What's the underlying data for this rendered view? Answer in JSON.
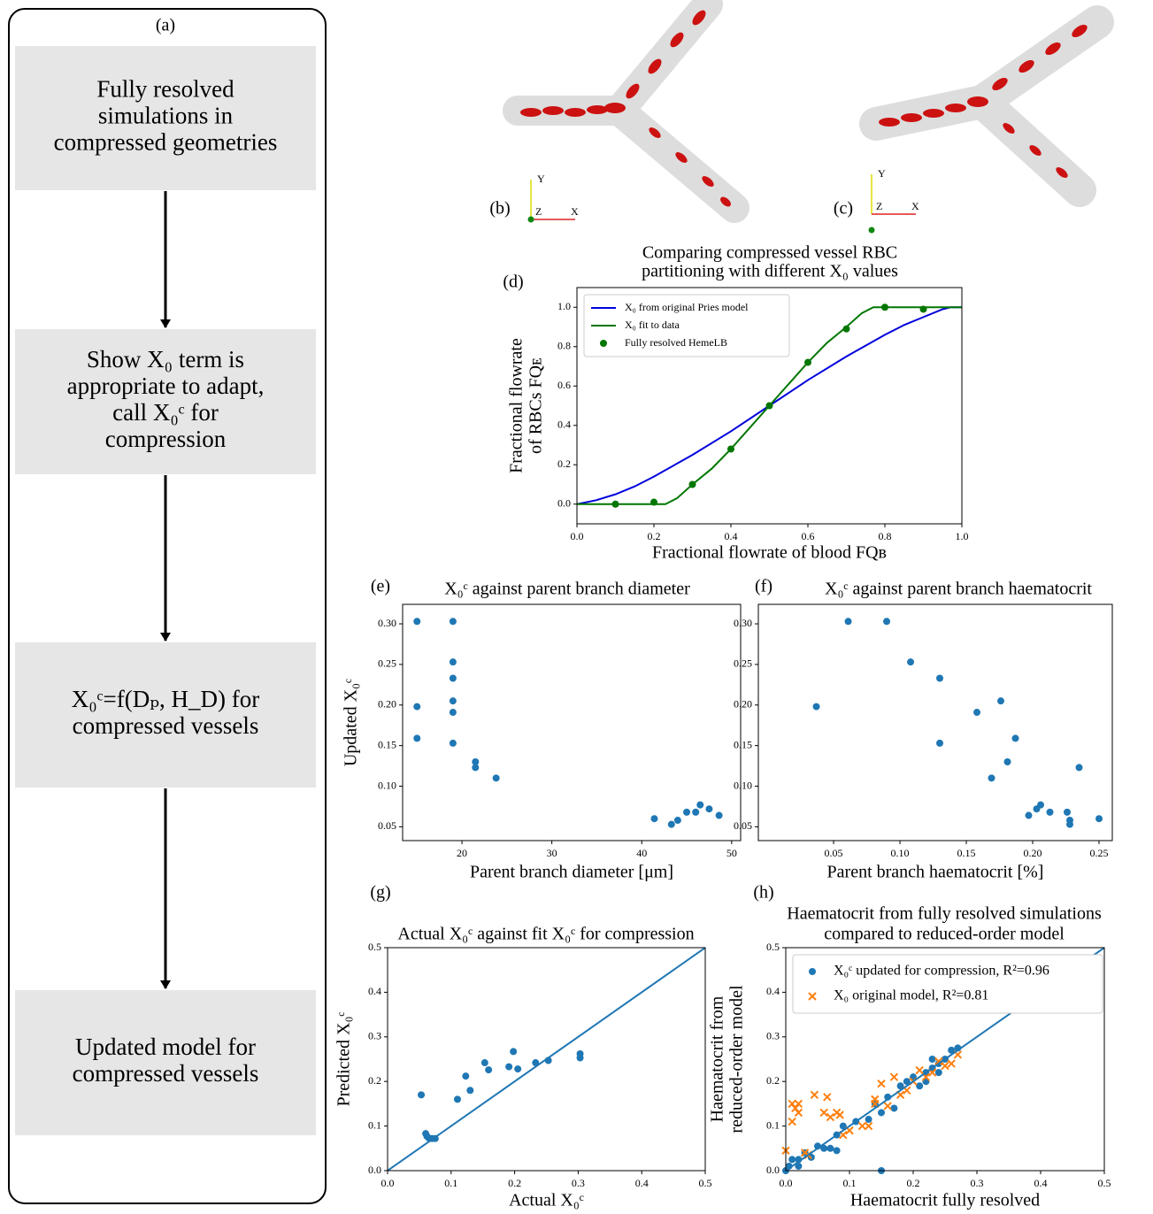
{
  "flowchart": {
    "label": "(a)",
    "steps": [
      [
        "Fully resolved",
        "simulations in",
        "compressed geometries"
      ],
      [
        "Show X₀ term is",
        "appropriate to adapt,",
        "call X₀ᶜ for",
        "compression"
      ],
      [
        "X₀ᶜ=f(Dₚ, H_D) for",
        "compressed vessels"
      ],
      [
        "Updated model for",
        "compressed vessels"
      ]
    ]
  },
  "renders": [
    {
      "label": "(b)",
      "axes": [
        "Y",
        "Z",
        "X"
      ]
    },
    {
      "label": "(c)",
      "axes": [
        "Y",
        "Z",
        "X"
      ]
    }
  ],
  "chart_data": [
    {
      "type": "line",
      "label": "(d)",
      "title": [
        "Comparing compressed vessel RBC",
        "partitioning with different X₀ values"
      ],
      "x_label": "Fractional flowrate of blood FQʙ",
      "y_label": [
        "Fractional flowrate",
        "of RBCs FQᴇ"
      ],
      "xlim": [
        0,
        1
      ],
      "ylim": [
        -0.1,
        1.1
      ],
      "xticks": [
        {
          "value": 0,
          "label": "0.0"
        },
        {
          "value": 0.2,
          "label": "0.2"
        },
        {
          "value": 0.4,
          "label": "0.4"
        },
        {
          "value": 0.6,
          "label": "0.6"
        },
        {
          "value": 0.8,
          "label": "0.8"
        },
        {
          "value": 1,
          "label": "1.0"
        }
      ],
      "yticks": [
        {
          "value": 0,
          "label": "0.0"
        },
        {
          "value": 0.2,
          "label": "0.2"
        },
        {
          "value": 0.4,
          "label": "0.4"
        },
        {
          "value": 0.6,
          "label": "0.6"
        },
        {
          "value": 0.8,
          "label": "0.8"
        },
        {
          "value": 1,
          "label": "1.0"
        }
      ],
      "legend": "upper left",
      "series": [
        {
          "name": "X₀ from original Pries model",
          "color": "#0000dd",
          "style": "line",
          "x": [
            0,
            0.05,
            0.1,
            0.15,
            0.2,
            0.3,
            0.4,
            0.5,
            0.6,
            0.7,
            0.8,
            0.85,
            0.9,
            0.95,
            0.97,
            1
          ],
          "values": [
            0,
            0.02,
            0.05,
            0.09,
            0.14,
            0.25,
            0.37,
            0.5,
            0.63,
            0.75,
            0.86,
            0.91,
            0.95,
            0.99,
            1,
            1
          ]
        },
        {
          "name": "X₀ fit to data",
          "color": "#007700",
          "style": "line",
          "x": [
            0,
            0.23,
            0.26,
            0.3,
            0.35,
            0.4,
            0.45,
            0.5,
            0.55,
            0.6,
            0.65,
            0.7,
            0.74,
            0.77,
            1
          ],
          "values": [
            0,
            0,
            0.03,
            0.1,
            0.18,
            0.28,
            0.39,
            0.5,
            0.61,
            0.72,
            0.82,
            0.9,
            0.97,
            1,
            1
          ]
        },
        {
          "name": "Fully resolved HemeLB",
          "color": "#007700",
          "style": "o",
          "x": [
            0.1,
            0.2,
            0.3,
            0.4,
            0.5,
            0.6,
            0.7,
            0.8,
            0.9
          ],
          "values": [
            0,
            0.01,
            0.1,
            0.28,
            0.5,
            0.72,
            0.89,
            1.0,
            0.99
          ]
        }
      ]
    },
    {
      "type": "scatter",
      "label": "(e)",
      "title": [
        "X₀ᶜ against parent branch diameter"
      ],
      "x_label": "Parent branch diameter [μm]",
      "y_label": [
        "Updated X₀ᶜ"
      ],
      "xlim": [
        13.4,
        51
      ],
      "ylim": [
        0.033,
        0.324
      ],
      "xticks": [
        20,
        30,
        40,
        50
      ],
      "yticks": [
        0.05,
        {
          "value": 0.1,
          "label": "0.10"
        },
        0.15,
        {
          "value": 0.2,
          "label": "0.20"
        },
        0.25,
        {
          "value": 0.3,
          "label": "0.30"
        }
      ],
      "series": [
        {
          "color": "#1f77b4",
          "style": "o",
          "x": [
            15,
            15,
            15,
            19,
            19,
            19,
            19,
            19,
            19,
            21.5,
            21.5,
            23.8,
            41.4,
            43.3,
            44,
            45,
            46,
            46.5,
            47.5,
            48.6
          ],
          "values": [
            0.303,
            0.198,
            0.159,
            0.303,
            0.253,
            0.233,
            0.205,
            0.191,
            0.153,
            0.13,
            0.123,
            0.11,
            0.06,
            0.053,
            0.058,
            0.068,
            0.068,
            0.077,
            0.072,
            0.064
          ]
        }
      ]
    },
    {
      "type": "scatter",
      "label": "(f)",
      "title": [
        "X₀ᶜ against parent branch haematocrit"
      ],
      "x_label": "Parent branch haematocrit [%]",
      "xlim": [
        -0.0067,
        0.26
      ],
      "ylim": [
        0.033,
        0.324
      ],
      "xticks": [
        0.05,
        {
          "value": 0.1,
          "label": "0.10"
        },
        0.15,
        {
          "value": 0.2,
          "label": "0.20"
        },
        0.25
      ],
      "yticks": [
        0.05,
        {
          "value": 0.1,
          "label": "0.10"
        },
        0.15,
        {
          "value": 0.2,
          "label": "0.20"
        },
        0.25,
        {
          "value": 0.3,
          "label": "0.30"
        }
      ],
      "series": [
        {
          "color": "#1f77b4",
          "style": "o",
          "x": [
            0.037,
            0.061,
            0.09,
            0.108,
            0.13,
            0.13,
            0.158,
            0.176,
            0.169,
            0.181,
            0.187,
            0.197,
            0.203,
            0.206,
            0.213,
            0.226,
            0.228,
            0.228,
            0.235,
            0.25
          ],
          "values": [
            0.198,
            0.303,
            0.303,
            0.253,
            0.233,
            0.153,
            0.191,
            0.205,
            0.11,
            0.13,
            0.159,
            0.064,
            0.072,
            0.077,
            0.068,
            0.068,
            0.058,
            0.053,
            0.123,
            0.06
          ]
        }
      ]
    },
    {
      "type": "scatter",
      "label": "(g)",
      "title": [
        "Actual X₀ᶜ against fit X₀ᶜ for compression"
      ],
      "x_label": "Actual X₀ᶜ",
      "y_label": [
        "Predicted X₀ᶜ"
      ],
      "xlim": [
        0,
        0.5
      ],
      "ylim": [
        0,
        0.5
      ],
      "xticks": [
        {
          "value": 0,
          "label": "0.0"
        },
        0.1,
        0.2,
        0.3,
        0.4,
        0.5
      ],
      "yticks": [
        {
          "value": 0,
          "label": "0.0"
        },
        0.1,
        0.2,
        0.3,
        0.4,
        0.5
      ],
      "series": [
        {
          "color": "#1f77b4",
          "style": "o",
          "x": [
            0.053,
            0.06,
            0.062,
            0.065,
            0.07,
            0.075,
            0.11,
            0.123,
            0.13,
            0.153,
            0.159,
            0.191,
            0.198,
            0.205,
            0.233,
            0.253,
            0.303,
            0.303
          ],
          "values": [
            0.17,
            0.083,
            0.077,
            0.073,
            0.072,
            0.072,
            0.16,
            0.212,
            0.18,
            0.242,
            0.226,
            0.233,
            0.267,
            0.228,
            0.242,
            0.247,
            0.262,
            0.253
          ]
        },
        {
          "color": "#1f77b4",
          "style": "line",
          "x": [
            0,
            0.5
          ],
          "values": [
            0,
            0.5
          ]
        }
      ]
    },
    {
      "type": "scatter",
      "label": "(h)",
      "title": [
        "Haematocrit from fully resolved simulations",
        "compared to reduced-order model"
      ],
      "x_label": "Haematocrit fully resolved",
      "y_label": [
        "Haematocrit from",
        "reduced-order model"
      ],
      "xlim": [
        0,
        0.5
      ],
      "ylim": [
        0,
        0.5
      ],
      "xticks": [
        {
          "value": 0,
          "label": "0.0"
        },
        0.1,
        0.2,
        0.3,
        0.4,
        0.5
      ],
      "yticks": [
        {
          "value": 0,
          "label": "0.0"
        },
        0.1,
        0.2,
        0.3,
        0.4,
        0.5
      ],
      "legend": "upper left",
      "series": [
        {
          "name": "X₀ᶜ updated for compression, R²=0.96",
          "color": "#1f77b4",
          "style": "o",
          "x": [
            0,
            0.005,
            0.01,
            0.02,
            0.02,
            0.03,
            0.04,
            0.05,
            0.06,
            0.07,
            0.08,
            0.08,
            0.09,
            0.11,
            0.13,
            0.14,
            0.15,
            0.16,
            0.15,
            0.17,
            0.18,
            0.19,
            0.2,
            0.21,
            0.22,
            0.23,
            0.23,
            0.24,
            0.25,
            0.26,
            0.27,
            0.22,
            0.24
          ],
          "values": [
            0,
            0.01,
            0.025,
            0.01,
            0.025,
            0.04,
            0.03,
            0.055,
            0.05,
            0.05,
            0.045,
            0.08,
            0.1,
            0.11,
            0.115,
            0.15,
            0.13,
            0.165,
            0,
            0.14,
            0.19,
            0.2,
            0.21,
            0.19,
            0.22,
            0.23,
            0.25,
            0.24,
            0.25,
            0.27,
            0.275,
            0.2,
            0.22
          ]
        },
        {
          "name": "X₀ original model, R²=0.81",
          "color": "#ff7f0e",
          "style": "x",
          "x": [
            0,
            0.01,
            0.01,
            0.015,
            0.02,
            0.02,
            0.03,
            0.035,
            0.045,
            0.06,
            0.065,
            0.07,
            0.08,
            0.085,
            0.09,
            0.1,
            0.12,
            0.13,
            0.14,
            0.14,
            0.15,
            0.16,
            0.17,
            0.18,
            0.19,
            0.2,
            0.21,
            0.22,
            0.23,
            0.24,
            0.25,
            0.26,
            0.27
          ],
          "values": [
            0.045,
            0.15,
            0.11,
            0.14,
            0.15,
            0.13,
            0.04,
            0.035,
            0.17,
            0.13,
            0.165,
            0.12,
            0.13,
            0.125,
            0.08,
            0.09,
            0.1,
            0.1,
            0.16,
            0.15,
            0.195,
            0.145,
            0.21,
            0.17,
            0.18,
            0.2,
            0.225,
            0.21,
            0.22,
            0.245,
            0.235,
            0.24,
            0.26
          ]
        },
        {
          "color": "#1f77b4",
          "style": "line",
          "x": [
            0,
            0.5
          ],
          "values": [
            0,
            0.5
          ]
        }
      ]
    }
  ]
}
